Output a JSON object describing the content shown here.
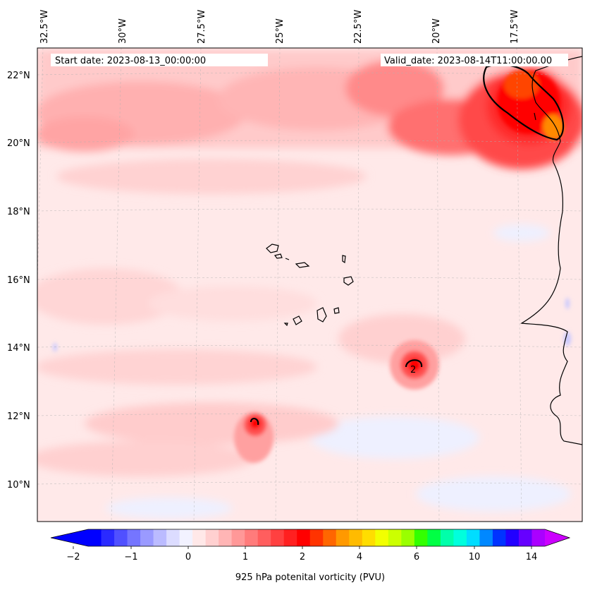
{
  "header": {
    "start_date": "Start date: 2023-08-13_00:00:00",
    "valid_date": "Valid_date: 2023-08-14T11:00:00.00"
  },
  "axes": {
    "lon_labels": [
      "32.5°W",
      "30°W",
      "27.5°W",
      "25°W",
      "22.5°W",
      "20°W",
      "17.5°W"
    ],
    "lat_labels": [
      "22°N",
      "20°N",
      "18°N",
      "16°N",
      "14°N",
      "12°N",
      "10°N"
    ]
  },
  "contour_label": "2",
  "colorbar": {
    "title": "925 hPa potenital vorticity (PVU)",
    "ticks": [
      "−2",
      "−1",
      "0",
      "1",
      "2",
      "4",
      "6",
      "10",
      "14"
    ],
    "colors": [
      "#0000ff",
      "#2a2aff",
      "#5050ff",
      "#7575ff",
      "#9a9aff",
      "#bbbbff",
      "#dcdcff",
      "#f2f2ff",
      "#ffe8e8",
      "#ffd0d0",
      "#ffb5b5",
      "#ff9898",
      "#ff7b7b",
      "#ff5e5e",
      "#ff4040",
      "#ff2020",
      "#ff0000",
      "#ff3300",
      "#ff6600",
      "#ff9900",
      "#ffbb00",
      "#ffdd00",
      "#f2ff00",
      "#ccff00",
      "#99ff00",
      "#33ff00",
      "#00ff44",
      "#00ffaa",
      "#00ffdd",
      "#00ddff",
      "#0088ff",
      "#0033ff",
      "#2200ff",
      "#6600ff",
      "#aa00ff"
    ],
    "extend_low_color": "#0000ff",
    "extend_high_color": "#cc00ff"
  }
}
